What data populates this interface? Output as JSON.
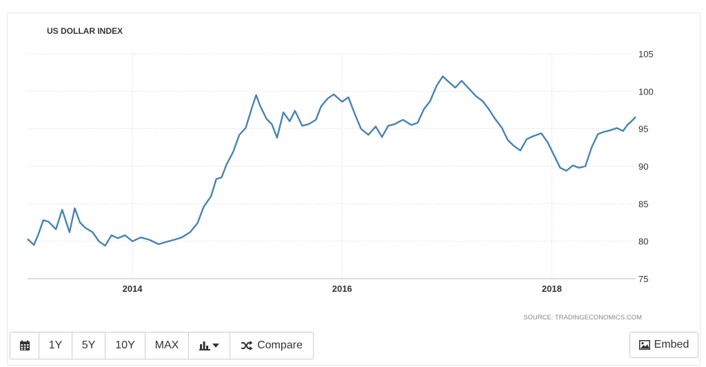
{
  "chart_data": {
    "type": "line",
    "title": "US DOLLAR INDEX",
    "source": "SOURCE: TRADINGECONOMICS.COM",
    "ylim": [
      75,
      105
    ],
    "y_ticks": [
      75,
      80,
      85,
      90,
      95,
      100,
      105
    ],
    "xlim": [
      2013.0,
      2018.8
    ],
    "x_ticks": [
      {
        "value": 2014,
        "label": "2014"
      },
      {
        "value": 2016,
        "label": "2016"
      },
      {
        "value": 2018,
        "label": "2018"
      }
    ],
    "grid": true,
    "series": [
      {
        "color": "#4682b4",
        "x": [
          2013.0,
          2013.06,
          2013.1,
          2013.15,
          2013.2,
          2013.27,
          2013.33,
          2013.4,
          2013.45,
          2013.5,
          2013.55,
          2013.62,
          2013.68,
          2013.74,
          2013.8,
          2013.86,
          2013.93,
          2014.0,
          2014.08,
          2014.16,
          2014.25,
          2014.32,
          2014.4,
          2014.47,
          2014.55,
          2014.62,
          2014.68,
          2014.75,
          2014.8,
          2014.85,
          2014.9,
          2014.96,
          2015.02,
          2015.08,
          2015.14,
          2015.18,
          2015.22,
          2015.28,
          2015.33,
          2015.38,
          2015.44,
          2015.5,
          2015.55,
          2015.62,
          2015.68,
          2015.75,
          2015.8,
          2015.86,
          2015.92,
          2016.0,
          2016.06,
          2016.12,
          2016.18,
          2016.25,
          2016.32,
          2016.38,
          2016.44,
          2016.5,
          2016.58,
          2016.66,
          2016.72,
          2016.78,
          2016.84,
          2016.9,
          2016.96,
          2017.02,
          2017.08,
          2017.14,
          2017.2,
          2017.28,
          2017.34,
          2017.4,
          2017.46,
          2017.52,
          2017.58,
          2017.64,
          2017.7,
          2017.76,
          2017.82,
          2017.9,
          2017.96,
          2018.02,
          2018.08,
          2018.14,
          2018.2,
          2018.26,
          2018.32,
          2018.38,
          2018.44,
          2018.5,
          2018.56,
          2018.62,
          2018.68,
          2018.72,
          2018.76,
          2018.8
        ],
        "y": [
          80.3,
          79.5,
          80.8,
          82.8,
          82.6,
          81.6,
          84.2,
          81.2,
          84.4,
          82.5,
          81.8,
          81.2,
          80.0,
          79.4,
          80.8,
          80.4,
          80.8,
          80.0,
          80.5,
          80.2,
          79.6,
          79.9,
          80.2,
          80.5,
          81.2,
          82.4,
          84.6,
          86.0,
          88.3,
          88.5,
          90.3,
          91.9,
          94.2,
          95.1,
          97.8,
          99.5,
          98.0,
          96.3,
          95.6,
          93.8,
          97.2,
          96.0,
          97.4,
          95.4,
          95.6,
          96.2,
          98.0,
          99.0,
          99.6,
          98.6,
          99.2,
          97.0,
          95.0,
          94.2,
          95.3,
          93.9,
          95.4,
          95.6,
          96.2,
          95.5,
          95.8,
          97.6,
          98.7,
          100.7,
          102.0,
          101.2,
          100.5,
          101.4,
          100.5,
          99.3,
          98.7,
          97.6,
          96.3,
          95.2,
          93.5,
          92.7,
          92.1,
          93.6,
          94.0,
          94.4,
          93.2,
          91.5,
          89.8,
          89.4,
          90.1,
          89.8,
          90.0,
          92.5,
          94.3,
          94.6,
          94.8,
          95.1,
          94.7,
          95.5,
          96.0,
          96.6
        ]
      }
    ]
  },
  "toolbar": {
    "calendar_icon": "calendar-icon",
    "buttons": [
      "1Y",
      "5Y",
      "10Y",
      "MAX"
    ],
    "chart_type_icon": "bar-chart-icon",
    "compare_label": "Compare",
    "compare_icon": "shuffle-icon"
  },
  "embed": {
    "label": "Embed",
    "icon": "image-icon"
  }
}
